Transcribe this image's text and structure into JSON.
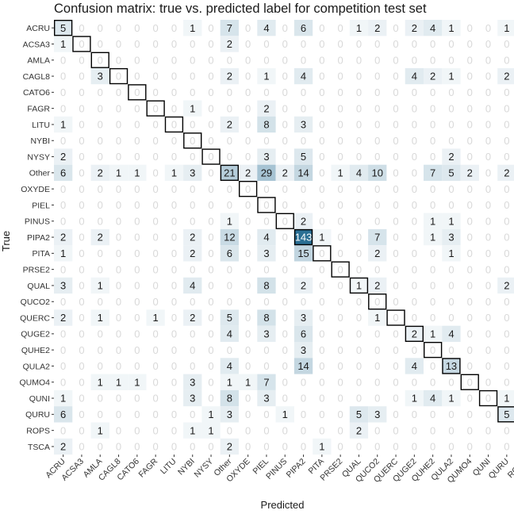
{
  "chart_data": {
    "type": "heatmap",
    "title": "Confusion matrix: true vs. predicted label for competition test set",
    "xlabel": "Predicted",
    "ylabel": "True",
    "labels": [
      "ACRU",
      "ACSA3",
      "AMLA",
      "CAGL8",
      "CATO6",
      "FAGR",
      "LITU",
      "NYBI",
      "NYSY",
      "Other",
      "OXYDE",
      "PIEL",
      "PINUS",
      "PIPA2",
      "PITA",
      "PRSE2",
      "QUAL",
      "QUCO2",
      "QUERC",
      "QUGE2",
      "QUHE2",
      "QULA2",
      "QUMO4",
      "QUNI",
      "QURU",
      "ROPS",
      "TSCA"
    ],
    "values": [
      [
        5,
        0,
        0,
        0,
        0,
        0,
        0,
        1,
        0,
        7,
        0,
        4,
        0,
        6,
        0,
        0,
        1,
        2,
        0,
        2,
        4,
        1,
        0,
        0,
        1,
        0,
        0
      ],
      [
        1,
        0,
        0,
        0,
        0,
        0,
        0,
        0,
        0,
        2,
        0,
        0,
        0,
        0,
        0,
        0,
        0,
        0,
        0,
        0,
        0,
        0,
        0,
        0,
        0,
        0,
        0
      ],
      [
        0,
        0,
        0,
        0,
        0,
        0,
        0,
        0,
        0,
        0,
        0,
        0,
        0,
        0,
        0,
        0,
        0,
        0,
        0,
        0,
        0,
        0,
        0,
        0,
        0,
        0,
        0
      ],
      [
        0,
        0,
        3,
        0,
        0,
        0,
        0,
        0,
        0,
        2,
        0,
        1,
        0,
        4,
        0,
        0,
        0,
        0,
        0,
        4,
        2,
        1,
        0,
        0,
        2,
        0,
        0
      ],
      [
        0,
        0,
        0,
        0,
        0,
        0,
        0,
        0,
        0,
        0,
        0,
        0,
        0,
        0,
        0,
        0,
        0,
        0,
        0,
        0,
        0,
        0,
        0,
        0,
        0,
        0,
        0
      ],
      [
        0,
        0,
        0,
        0,
        0,
        0,
        0,
        1,
        0,
        0,
        0,
        2,
        0,
        0,
        0,
        0,
        0,
        0,
        0,
        0,
        0,
        0,
        0,
        0,
        0,
        0,
        0
      ],
      [
        1,
        0,
        0,
        0,
        0,
        0,
        0,
        0,
        0,
        2,
        0,
        8,
        0,
        3,
        0,
        0,
        0,
        0,
        0,
        0,
        0,
        0,
        0,
        0,
        0,
        0,
        0
      ],
      [
        0,
        0,
        0,
        0,
        0,
        0,
        0,
        0,
        0,
        0,
        0,
        0,
        0,
        0,
        0,
        0,
        0,
        0,
        0,
        0,
        0,
        0,
        0,
        0,
        0,
        0,
        0
      ],
      [
        2,
        0,
        0,
        0,
        0,
        0,
        0,
        0,
        0,
        0,
        0,
        3,
        0,
        5,
        0,
        0,
        0,
        0,
        0,
        0,
        0,
        2,
        0,
        0,
        0,
        0,
        0
      ],
      [
        6,
        0,
        2,
        1,
        1,
        0,
        1,
        3,
        0,
        21,
        2,
        29,
        2,
        14,
        0,
        1,
        4,
        10,
        0,
        0,
        7,
        5,
        2,
        0,
        2,
        0,
        0
      ],
      [
        0,
        0,
        0,
        0,
        0,
        0,
        0,
        0,
        0,
        0,
        0,
        0,
        0,
        0,
        0,
        0,
        0,
        0,
        0,
        0,
        0,
        0,
        0,
        0,
        0,
        0,
        0
      ],
      [
        0,
        0,
        0,
        0,
        0,
        0,
        0,
        0,
        0,
        0,
        0,
        0,
        0,
        0,
        0,
        0,
        0,
        0,
        0,
        0,
        0,
        0,
        0,
        0,
        0,
        0,
        0
      ],
      [
        0,
        0,
        0,
        0,
        0,
        0,
        0,
        0,
        0,
        1,
        0,
        0,
        0,
        2,
        0,
        0,
        0,
        0,
        0,
        0,
        1,
        1,
        0,
        0,
        0,
        0,
        0
      ],
      [
        2,
        0,
        2,
        0,
        0,
        0,
        0,
        2,
        0,
        12,
        0,
        4,
        0,
        143,
        1,
        0,
        0,
        7,
        0,
        0,
        1,
        3,
        0,
        0,
        0,
        0,
        0
      ],
      [
        1,
        0,
        0,
        0,
        0,
        0,
        0,
        2,
        0,
        6,
        0,
        3,
        0,
        15,
        0,
        0,
        0,
        2,
        0,
        0,
        0,
        1,
        0,
        0,
        0,
        0,
        0
      ],
      [
        0,
        0,
        0,
        0,
        0,
        0,
        0,
        0,
        0,
        0,
        0,
        0,
        0,
        0,
        0,
        0,
        0,
        0,
        0,
        0,
        0,
        0,
        0,
        0,
        0,
        0,
        0
      ],
      [
        3,
        0,
        1,
        0,
        0,
        0,
        0,
        4,
        0,
        0,
        0,
        8,
        0,
        2,
        0,
        0,
        1,
        2,
        0,
        0,
        0,
        0,
        0,
        0,
        2,
        0,
        0
      ],
      [
        0,
        0,
        0,
        0,
        0,
        0,
        0,
        0,
        0,
        0,
        0,
        0,
        0,
        0,
        0,
        0,
        0,
        0,
        0,
        0,
        0,
        0,
        0,
        0,
        0,
        0,
        0
      ],
      [
        2,
        0,
        1,
        0,
        0,
        1,
        0,
        2,
        0,
        5,
        0,
        8,
        0,
        3,
        0,
        0,
        0,
        1,
        0,
        0,
        0,
        0,
        0,
        0,
        0,
        0,
        0
      ],
      [
        0,
        0,
        0,
        0,
        0,
        0,
        0,
        0,
        0,
        4,
        0,
        3,
        0,
        6,
        0,
        0,
        0,
        0,
        0,
        2,
        1,
        4,
        0,
        0,
        0,
        0,
        0
      ],
      [
        0,
        0,
        0,
        0,
        0,
        0,
        0,
        0,
        0,
        0,
        0,
        0,
        0,
        3,
        0,
        0,
        0,
        0,
        0,
        0,
        0,
        0,
        0,
        0,
        0,
        0,
        0
      ],
      [
        0,
        0,
        0,
        0,
        0,
        0,
        0,
        0,
        0,
        4,
        0,
        0,
        0,
        14,
        0,
        0,
        0,
        0,
        0,
        4,
        0,
        13,
        0,
        0,
        0,
        0,
        0
      ],
      [
        0,
        0,
        1,
        1,
        1,
        0,
        0,
        3,
        0,
        1,
        1,
        7,
        0,
        0,
        0,
        0,
        0,
        0,
        0,
        0,
        0,
        0,
        0,
        0,
        0,
        0,
        0
      ],
      [
        1,
        0,
        0,
        0,
        0,
        0,
        0,
        3,
        0,
        8,
        0,
        3,
        0,
        0,
        0,
        0,
        0,
        0,
        0,
        1,
        4,
        1,
        0,
        0,
        1,
        0,
        0
      ],
      [
        6,
        0,
        0,
        0,
        0,
        0,
        0,
        0,
        1,
        3,
        0,
        0,
        1,
        0,
        0,
        0,
        5,
        3,
        0,
        0,
        0,
        0,
        0,
        0,
        5,
        0,
        0
      ],
      [
        0,
        0,
        1,
        0,
        0,
        0,
        0,
        1,
        1,
        0,
        0,
        0,
        0,
        0,
        0,
        0,
        2,
        0,
        0,
        0,
        0,
        0,
        0,
        0,
        0,
        0,
        0
      ],
      [
        2,
        0,
        0,
        0,
        0,
        0,
        0,
        0,
        0,
        2,
        0,
        0,
        0,
        0,
        1,
        0,
        0,
        0,
        0,
        0,
        0,
        0,
        0,
        0,
        0,
        0,
        0
      ]
    ],
    "colors": {
      "low": "#ffffff",
      "high": "#2a6f94",
      "zero_text": "#d9d9d9",
      "text": "#1a1a1a",
      "diagonal_box": "#000000"
    }
  }
}
